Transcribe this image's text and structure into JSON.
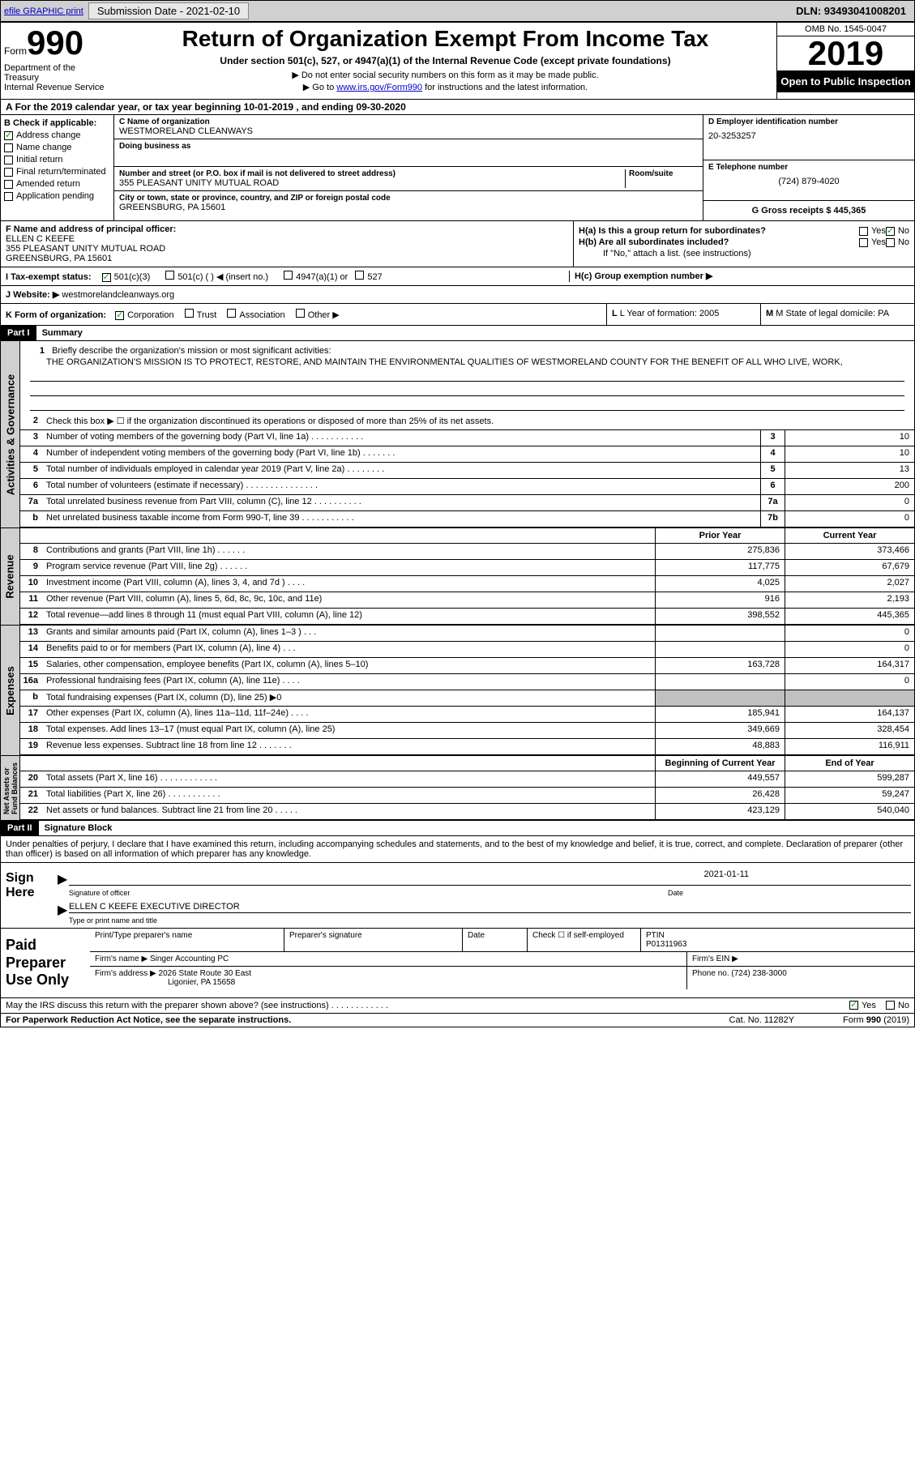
{
  "topbar": {
    "efile_link": "efile GRAPHIC print",
    "submission_label": "Submission Date - 2021-02-10",
    "dln": "DLN: 93493041008201"
  },
  "header": {
    "form_label": "Form",
    "form_num": "990",
    "dept": "Department of the Treasury\nInternal Revenue Service",
    "title": "Return of Organization Exempt From Income Tax",
    "subtitle": "Under section 501(c), 527, or 4947(a)(1) of the Internal Revenue Code (except private foundations)",
    "note1": "▶ Do not enter social security numbers on this form as it may be made public.",
    "note2_prefix": "▶ Go to ",
    "note2_link": "www.irs.gov/Form990",
    "note2_suffix": " for instructions and the latest information.",
    "omb": "OMB No. 1545-0047",
    "year": "2019",
    "inspect": "Open to Public Inspection"
  },
  "row_a": "For the 2019 calendar year, or tax year beginning 10-01-2019    , and ending 09-30-2020",
  "col_b": {
    "header": "B Check if applicable:",
    "items": [
      {
        "label": "Address change",
        "checked": true
      },
      {
        "label": "Name change",
        "checked": false
      },
      {
        "label": "Initial return",
        "checked": false
      },
      {
        "label": "Final return/terminated",
        "checked": false
      },
      {
        "label": "Amended return",
        "checked": false
      },
      {
        "label": "Application pending",
        "checked": false
      }
    ]
  },
  "col_c": {
    "name_label": "C Name of organization",
    "name": "WESTMORELAND CLEANWAYS",
    "dba_label": "Doing business as",
    "dba": "",
    "addr_label": "Number and street (or P.O. box if mail is not delivered to street address)",
    "room_label": "Room/suite",
    "addr": "355 PLEASANT UNITY MUTUAL ROAD",
    "city_label": "City or town, state or province, country, and ZIP or foreign postal code",
    "city": "GREENSBURG, PA  15601"
  },
  "col_d": {
    "ein_label": "D Employer identification number",
    "ein": "20-3253257",
    "phone_label": "E Telephone number",
    "phone": "(724) 879-4020",
    "gross_label": "G Gross receipts $ 445,365"
  },
  "officer": {
    "label": "F  Name and address of principal officer:",
    "name": "ELLEN C KEEFE",
    "addr1": "355 PLEASANT UNITY MUTUAL ROAD",
    "addr2": "GREENSBURG, PA  15601"
  },
  "h_section": {
    "ha": "H(a)  Is this a group return for subordinates?",
    "hb": "H(b)  Are all subordinates included?",
    "hb_note": "If \"No,\" attach a list. (see instructions)",
    "hc": "H(c)  Group exemption number ▶",
    "yes": "Yes",
    "no": "No"
  },
  "tax_status": {
    "label": "I     Tax-exempt status:",
    "opts": [
      "501(c)(3)",
      "501(c) (  ) ◀ (insert no.)",
      "4947(a)(1) or",
      "527"
    ]
  },
  "website": {
    "label": "J    Website: ▶",
    "value": " westmorelandcleanways.org"
  },
  "k_row": {
    "label": "K Form of organization:",
    "opts": [
      "Corporation",
      "Trust",
      "Association",
      "Other ▶"
    ],
    "l": "L Year of formation: 2005",
    "m": "M State of legal domicile: PA"
  },
  "part1": {
    "num": "Part I",
    "title": "Summary"
  },
  "mission": {
    "num": "1",
    "label": "Briefly describe the organization's mission or most significant activities:",
    "text": "THE ORGANIZATION'S MISSION IS TO PROTECT, RESTORE, AND MAINTAIN THE ENVIRONMENTAL QUALITIES OF WESTMORELAND COUNTY FOR THE BENEFIT OF ALL WHO LIVE, WORK,"
  },
  "gov_lines": [
    {
      "num": "2",
      "text": "Check this box ▶ ☐  if the organization discontinued its operations or disposed of more than 25% of its net assets.",
      "box": "",
      "val": ""
    },
    {
      "num": "3",
      "text": "Number of voting members of the governing body (Part VI, line 1a)  .   .   .   .   .   .   .   .   .   .   .",
      "box": "3",
      "val": "10"
    },
    {
      "num": "4",
      "text": "Number of independent voting members of the governing body (Part VI, line 1b)  .   .   .   .   .   .   .",
      "box": "4",
      "val": "10"
    },
    {
      "num": "5",
      "text": "Total number of individuals employed in calendar year 2019 (Part V, line 2a)  .   .   .   .   .   .   .   .",
      "box": "5",
      "val": "13"
    },
    {
      "num": "6",
      "text": "Total number of volunteers (estimate if necessary)   .   .   .   .   .   .   .   .   .   .   .   .   .   .   .",
      "box": "6",
      "val": "200"
    },
    {
      "num": "7a",
      "text": "Total unrelated business revenue from Part VIII, column (C), line 12  .   .   .   .   .   .   .   .   .   .",
      "box": "7a",
      "val": "0"
    },
    {
      "num": "b",
      "text": "Net unrelated business taxable income from Form 990-T, line 39   .   .   .   .   .   .   .   .   .   .   .",
      "box": "7b",
      "val": "0"
    }
  ],
  "col_headers": {
    "prior": "Prior Year",
    "current": "Current Year"
  },
  "rev_lines": [
    {
      "num": "8",
      "text": "Contributions and grants (Part VIII, line 1h)   .   .   .   .   .   .",
      "prior": "275,836",
      "current": "373,466"
    },
    {
      "num": "9",
      "text": "Program service revenue (Part VIII, line 2g)   .   .   .   .   .   .",
      "prior": "117,775",
      "current": "67,679"
    },
    {
      "num": "10",
      "text": "Investment income (Part VIII, column (A), lines 3, 4, and 7d )   .   .   .   .",
      "prior": "4,025",
      "current": "2,027"
    },
    {
      "num": "11",
      "text": "Other revenue (Part VIII, column (A), lines 5, 6d, 8c, 9c, 10c, and 11e)",
      "prior": "916",
      "current": "2,193"
    },
    {
      "num": "12",
      "text": "Total revenue—add lines 8 through 11 (must equal Part VIII, column (A), line 12)",
      "prior": "398,552",
      "current": "445,365"
    }
  ],
  "exp_lines": [
    {
      "num": "13",
      "text": "Grants and similar amounts paid (Part IX, column (A), lines 1–3 )   .   .   .",
      "prior": "",
      "current": "0"
    },
    {
      "num": "14",
      "text": "Benefits paid to or for members (Part IX, column (A), line 4)   .   .   .",
      "prior": "",
      "current": "0"
    },
    {
      "num": "15",
      "text": "Salaries, other compensation, employee benefits (Part IX, column (A), lines 5–10)",
      "prior": "163,728",
      "current": "164,317"
    },
    {
      "num": "16a",
      "text": "Professional fundraising fees (Part IX, column (A), line 11e)   .   .   .   .",
      "prior": "",
      "current": "0"
    },
    {
      "num": "b",
      "text": "Total fundraising expenses (Part IX, column (D), line 25) ▶0",
      "prior": "GRAY",
      "current": "GRAY"
    },
    {
      "num": "17",
      "text": "Other expenses (Part IX, column (A), lines 11a–11d, 11f–24e)   .   .   .   .",
      "prior": "185,941",
      "current": "164,137"
    },
    {
      "num": "18",
      "text": "Total expenses. Add lines 13–17 (must equal Part IX, column (A), line 25)",
      "prior": "349,669",
      "current": "328,454"
    },
    {
      "num": "19",
      "text": "Revenue less expenses. Subtract line 18 from line 12 .   .   .   .   .   .   .",
      "prior": "48,883",
      "current": "116,911"
    }
  ],
  "na_headers": {
    "begin": "Beginning of Current Year",
    "end": "End of Year"
  },
  "na_lines": [
    {
      "num": "20",
      "text": "Total assets (Part X, line 16)  .   .   .   .   .   .   .   .   .   .   .   .",
      "prior": "449,557",
      "current": "599,287"
    },
    {
      "num": "21",
      "text": "Total liabilities (Part X, line 26)  .   .   .   .   .   .   .   .   .   .   .",
      "prior": "26,428",
      "current": "59,247"
    },
    {
      "num": "22",
      "text": "Net assets or fund balances. Subtract line 21 from line 20  .   .   .   .   .",
      "prior": "423,129",
      "current": "540,040"
    }
  ],
  "part2": {
    "num": "Part II",
    "title": "Signature Block"
  },
  "sig": {
    "intro": "Under penalties of perjury, I declare that I have examined this return, including accompanying schedules and statements, and to the best of my knowledge and belief, it is true, correct, and complete. Declaration of preparer (other than officer) is based on all information of which preparer has any knowledge.",
    "sign_here": "Sign Here",
    "sig_officer": "Signature of officer",
    "date_label": "Date",
    "date": "2021-01-11",
    "name_title": "ELLEN C KEEFE  EXECUTIVE DIRECTOR",
    "type_name": "Type or print name and title"
  },
  "prep": {
    "label": "Paid Preparer Use Only",
    "print_name": "Print/Type preparer's name",
    "prep_sig": "Preparer's signature",
    "date": "Date",
    "check_self": "Check ☐ if self-employed",
    "ptin_label": "PTIN",
    "ptin": "P01311963",
    "firm_name_label": "Firm's name    ▶",
    "firm_name": "Singer Accounting PC",
    "firm_ein": "Firm's EIN ▶",
    "firm_addr_label": "Firm's address ▶",
    "firm_addr1": "2026 State Route 30 East",
    "firm_addr2": "Ligonier, PA  15658",
    "firm_phone_label": "Phone no. (724) 238-3000"
  },
  "discuss": {
    "text": "May the IRS discuss this return with the preparer shown above? (see instructions)   .   .   .   .   .   .   .   .   .   .   .   .",
    "yes": "Yes",
    "no": "No"
  },
  "footer": {
    "left": "For Paperwork Reduction Act Notice, see the separate instructions.",
    "mid": "Cat. No. 11282Y",
    "right": "Form 990 (2019)"
  }
}
